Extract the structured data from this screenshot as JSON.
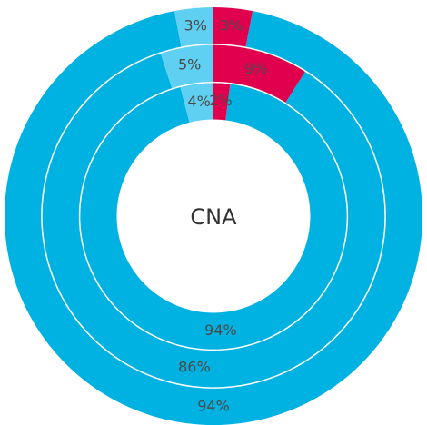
{
  "chart_data": {
    "type": "donut",
    "center_label": "CNA",
    "colors": [
      "#e0004d",
      "#00b2e2",
      "#5fd0f2"
    ],
    "series": [
      {
        "values": [
          3,
          94,
          3
        ],
        "value_labels": [
          "3%",
          "94%",
          "3%"
        ]
      },
      {
        "values": [
          9,
          86,
          5
        ],
        "value_labels": [
          "9%",
          "86%",
          "5%"
        ]
      },
      {
        "values": [
          2,
          94,
          4
        ],
        "value_labels": [
          "2%",
          "94%",
          "4%"
        ]
      }
    ]
  }
}
